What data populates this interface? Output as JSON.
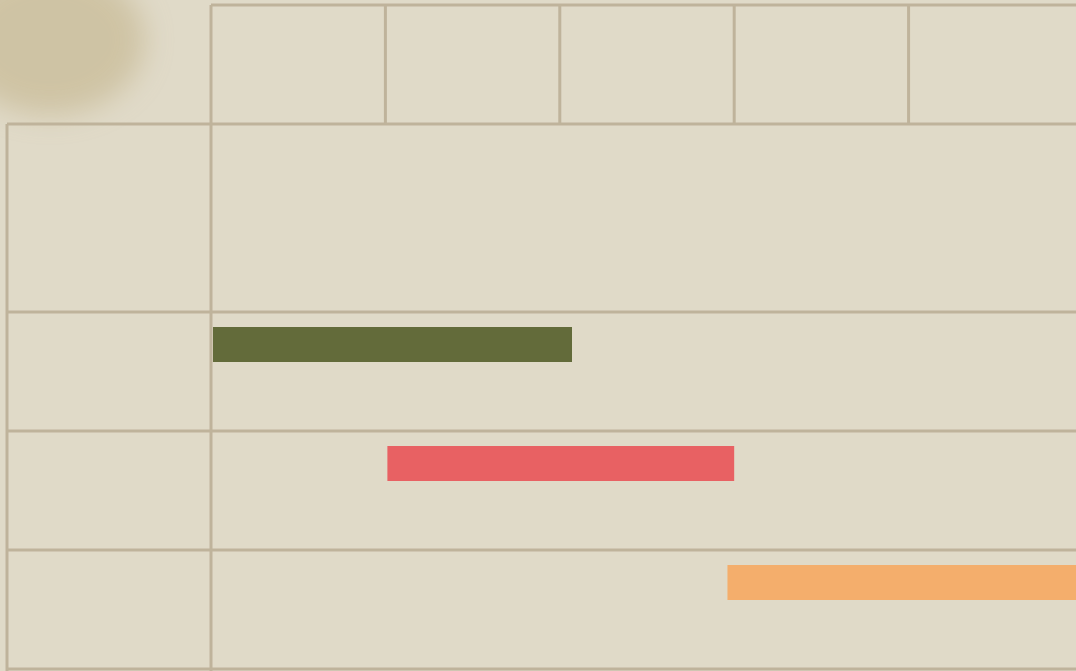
{
  "chart_data": {
    "type": "gantt",
    "xlim": [
      0,
      4.96
    ],
    "xticks": [
      0,
      1,
      2,
      3,
      4
    ],
    "grid": true,
    "tasks": [
      {
        "start": 0,
        "end": 2.07,
        "color": "#636b3a"
      },
      {
        "start": 1,
        "end": 3,
        "color": "#e86163"
      },
      {
        "start": 2.95,
        "end": 5.2,
        "color": "#f4ae6c"
      }
    ]
  }
}
